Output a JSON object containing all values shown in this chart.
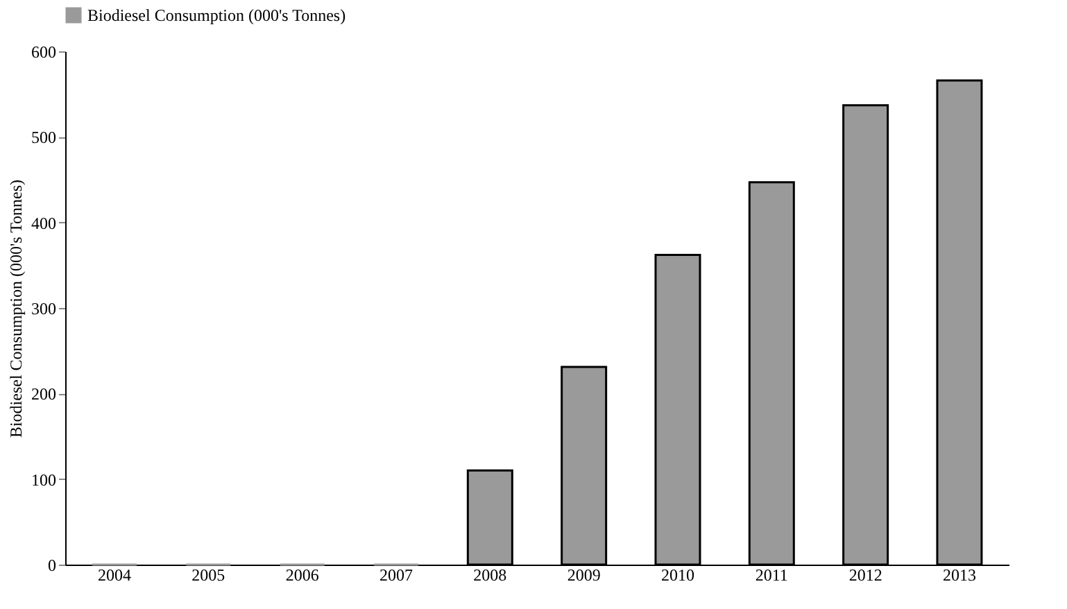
{
  "chart_data": {
    "type": "bar",
    "ylabel": "Biodiesel Consumption (000's Tonnes)",
    "categories": [
      "2004",
      "2005",
      "2006",
      "2007",
      "2008",
      "2009",
      "2010",
      "2011",
      "2012",
      "2013"
    ],
    "series": [
      {
        "name": "Biodiesel Consumption (000's Tonnes)",
        "color": "#9a9a9a",
        "values": [
          0,
          0,
          0,
          0,
          110,
          231,
          362,
          447,
          537,
          566
        ]
      }
    ],
    "ylim": [
      0,
      600
    ],
    "yticks": [
      0,
      100,
      200,
      300,
      400,
      500,
      600
    ],
    "grid": false,
    "legend": "top"
  }
}
